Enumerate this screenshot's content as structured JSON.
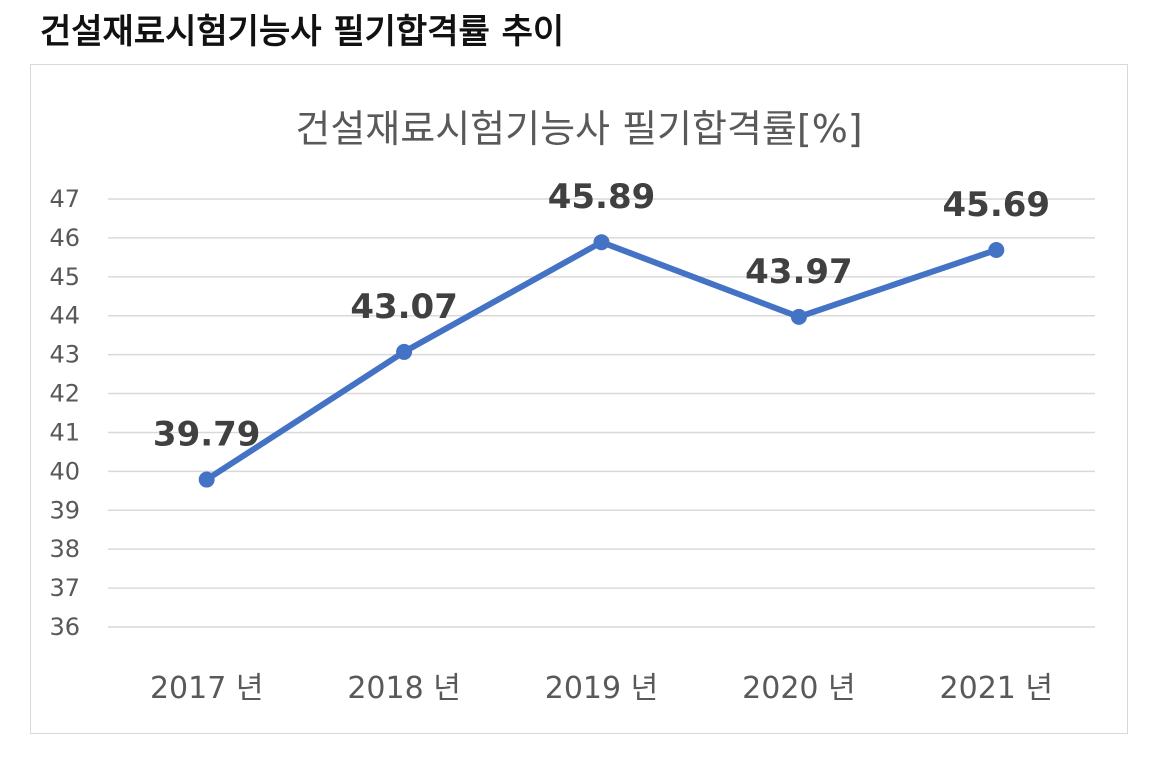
{
  "heading": "건설재료시험기능사 필기합격률 추이",
  "chart_data": {
    "type": "line",
    "title": "건설재료시험기능사 필기합격률[%]",
    "xlabel": "",
    "ylabel": "",
    "categories": [
      "2017 년",
      "2018 년",
      "2019 년",
      "2020 년",
      "2021 년"
    ],
    "series": [
      {
        "values": [
          39.79,
          43.07,
          45.89,
          43.97,
          45.69
        ]
      }
    ],
    "ylim": [
      36,
      47
    ],
    "yticks": [
      36,
      37,
      38,
      39,
      40,
      41,
      42,
      43,
      44,
      45,
      46,
      47
    ],
    "grid": true,
    "data_labels": true,
    "line_color": "#4472c4"
  }
}
